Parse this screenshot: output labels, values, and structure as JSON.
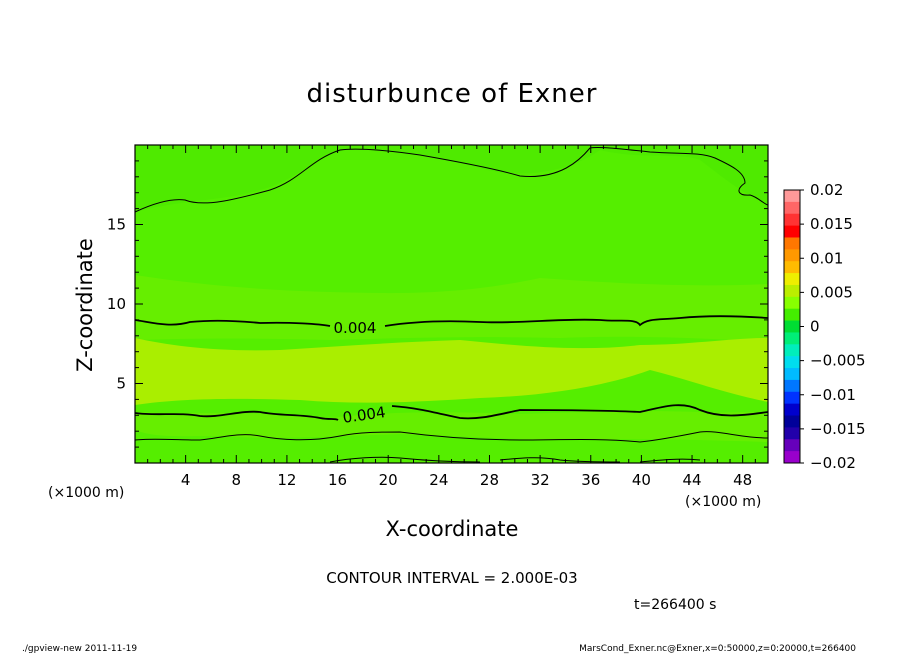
{
  "chart_data": {
    "type": "contour",
    "title": "disturbunce of Exner",
    "xlabel": "X-coordinate",
    "ylabel": "Z-coordinate",
    "x_unit": "(×1000 m)",
    "y_unit": "(×1000 m)",
    "xlim": [
      0,
      50
    ],
    "ylim": [
      0,
      20
    ],
    "x_ticks": [
      4,
      8,
      12,
      16,
      20,
      24,
      28,
      32,
      36,
      40,
      44,
      48
    ],
    "y_ticks": [
      5,
      10,
      15
    ],
    "contour_labels": [
      {
        "text": "0.004",
        "x": 20.7,
        "z": 8.4
      },
      {
        "text": "0.004",
        "x": 21.3,
        "z": 3.1
      }
    ],
    "colorbar": {
      "ticks": [
        "0.02",
        "0.015",
        "0.01",
        "0.005",
        "0",
        "−0.005",
        "−0.01",
        "−0.015",
        "−0.02"
      ],
      "colors": [
        "#ff9999",
        "#ff6666",
        "#ff3333",
        "#ff0000",
        "#ff7700",
        "#ff9900",
        "#ffbb00",
        "#eeee00",
        "#bbee00",
        "#88ff00",
        "#44ee00",
        "#00dd33",
        "#00ee77",
        "#00eebb",
        "#00ddee",
        "#00bbff",
        "#0077ff",
        "#0033ff",
        "#0000cc",
        "#000099",
        "#2200aa",
        "#6600bb",
        "#9900cc"
      ]
    },
    "contour_interval_text": "CONTOUR INTERVAL = 2.000E-03",
    "time_text": "t=266400 s"
  },
  "footer": {
    "left": "./gpview-new  2011-11-19",
    "right": "MarsCond_Exner.nc@Exner,x=0:50000,z=0:20000,t=266400"
  }
}
